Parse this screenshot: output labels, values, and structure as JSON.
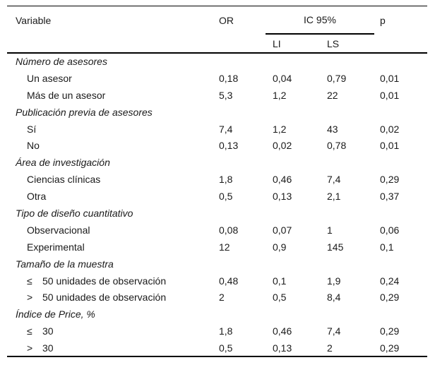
{
  "page": {
    "background": "#ffffff",
    "text_color": "#1a1a1a",
    "rule_color": "#000000"
  },
  "table": {
    "header": {
      "variable": "Variable",
      "or": "OR",
      "ic95": "IC 95%",
      "li": "LI",
      "ls": "LS",
      "p": "p"
    },
    "groups": [
      {
        "label": "Número de asesores",
        "rows": [
          {
            "label": "Un asesor",
            "or": "0,18",
            "li": "0,04",
            "ls": "0,79",
            "p": "0,01"
          },
          {
            "label": "Más de un asesor",
            "or": "5,3",
            "li": "1,2",
            "ls": "22",
            "p": "0,01"
          }
        ]
      },
      {
        "label": "Publicación previa de asesores",
        "rows": [
          {
            "label": "Sí",
            "or": "7,4",
            "li": "1,2",
            "ls": "43",
            "p": "0,02"
          },
          {
            "label": "No",
            "or": "0,13",
            "li": "0,02",
            "ls": "0,78",
            "p": "0,01"
          }
        ]
      },
      {
        "label": "Área de investigación",
        "rows": [
          {
            "label": "Ciencias clínicas",
            "or": "1,8",
            "li": "0,46",
            "ls": "7,4",
            "p": "0,29"
          },
          {
            "label": "Otra",
            "or": "0,5",
            "li": "0,13",
            "ls": "2,1",
            "p": "0,37"
          }
        ]
      },
      {
        "label": "Tipo de diseño cuantitativo",
        "rows": [
          {
            "label": "Observacional",
            "or": "0,08",
            "li": "0,07",
            "ls": "1",
            "p": "0,06"
          },
          {
            "label": "Experimental",
            "or": "12",
            "li": "0,9",
            "ls": "145",
            "p": "0,1"
          }
        ]
      },
      {
        "label": "Tamaño de la muestra",
        "rows": [
          {
            "sym": "≤",
            "label": "50 unidades de observación",
            "or": "0,48",
            "li": "0,1",
            "ls": "1,9",
            "p": "0,24"
          },
          {
            "sym": ">",
            "label": "50 unidades de observación",
            "or": "2",
            "li": "0,5",
            "ls": "8,4",
            "p": "0,29"
          }
        ]
      },
      {
        "label": "Índice de Price, %",
        "rows": [
          {
            "sym": "≤",
            "label": "30",
            "or": "1,8",
            "li": "0,46",
            "ls": "7,4",
            "p": "0,29"
          },
          {
            "sym": ">",
            "label": "30",
            "or": "0,5",
            "li": "0,13",
            "ls": "2",
            "p": "0,29"
          }
        ]
      }
    ]
  }
}
